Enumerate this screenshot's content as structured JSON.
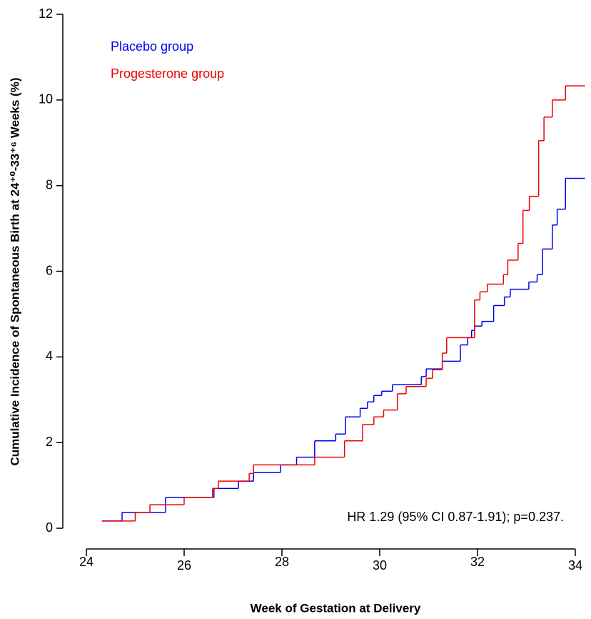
{
  "chart_data": {
    "type": "step",
    "x_label": "Week of Gestation at Delivery",
    "y_label": "Cumulative Incidence of Spontaneous Birth at 24⁺⁰-33⁺⁶ Weeks (%)",
    "annotation": "HR 1.29 (95% CI 0.87-1.91); p=0.237.",
    "xlim": [
      23.5,
      34.25
    ],
    "xticks": [
      24,
      26,
      28,
      30,
      32,
      34
    ],
    "ylim": [
      -0.5,
      12
    ],
    "yticks": [
      0,
      2,
      4,
      6,
      8,
      10,
      12
    ],
    "series": [
      {
        "name": "Placebo group",
        "color": "#0000ee",
        "x": [
          24.32,
          24.73,
          25.62,
          26.61,
          27.11,
          27.42,
          27.97,
          28.3,
          28.67,
          29.1,
          29.3,
          29.6,
          29.75,
          29.88,
          30.04,
          30.26,
          30.85,
          30.95,
          31.28,
          31.65,
          31.8,
          31.88,
          31.94,
          32.09,
          32.33,
          32.55,
          32.67,
          33.05,
          33.22,
          33.33,
          33.53,
          33.63,
          33.8,
          34.2
        ],
        "values": [
          0.17,
          0.37,
          0.72,
          0.93,
          1.1,
          1.3,
          1.48,
          1.66,
          2.04,
          2.2,
          2.6,
          2.8,
          2.95,
          3.1,
          3.2,
          3.35,
          3.54,
          3.72,
          3.9,
          4.28,
          4.45,
          4.62,
          4.72,
          4.83,
          5.2,
          5.4,
          5.58,
          5.75,
          5.92,
          6.52,
          7.08,
          7.45,
          8.17,
          8.17
        ]
      },
      {
        "name": "Progesterone group",
        "color": "#ee0000",
        "x": [
          24.32,
          25.0,
          25.3,
          26.0,
          26.58,
          26.7,
          27.33,
          27.42,
          28.67,
          29.28,
          29.65,
          29.88,
          30.08,
          30.36,
          30.54,
          30.95,
          31.08,
          31.28,
          31.37,
          31.94,
          32.05,
          32.2,
          32.53,
          32.62,
          32.83,
          32.93,
          33.06,
          33.25,
          33.36,
          33.53,
          33.8,
          34.2
        ],
        "values": [
          0.17,
          0.37,
          0.55,
          0.72,
          0.93,
          1.1,
          1.28,
          1.48,
          1.66,
          2.04,
          2.42,
          2.6,
          2.76,
          3.14,
          3.31,
          3.5,
          3.7,
          4.09,
          4.45,
          5.33,
          5.52,
          5.7,
          5.92,
          6.26,
          6.65,
          7.42,
          7.75,
          9.05,
          9.6,
          10.0,
          10.33,
          10.33
        ]
      }
    ]
  }
}
